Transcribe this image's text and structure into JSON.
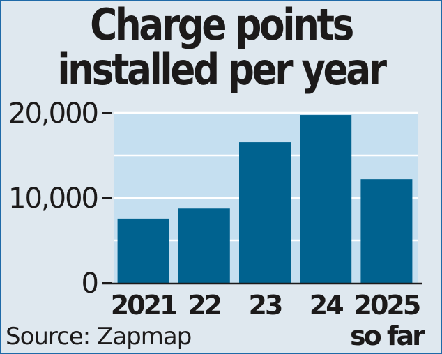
{
  "chart_data": {
    "type": "bar",
    "title_lines": [
      "Charge points",
      "installed per year"
    ],
    "categories": [
      "2021",
      "22",
      "23",
      "24",
      "2025"
    ],
    "category_sublabels": [
      "",
      "",
      "",
      "",
      "so far"
    ],
    "values": [
      7550,
      8750,
      16550,
      19750,
      12200
    ],
    "ylim": [
      0,
      20000
    ],
    "yticks": [
      0,
      10000,
      20000
    ],
    "ytick_labels": [
      "0",
      "10,000",
      "20,000"
    ],
    "gridlines": [
      5000,
      10000,
      15000,
      20000
    ],
    "xlabel": "",
    "ylabel": "",
    "grid": true,
    "source": "Source: Zapmap",
    "colors": {
      "bar": "#00628f",
      "plot_bg": "#c5dff0",
      "page_bg": "#dfe8ef",
      "border": "#1f6aa8",
      "grid": "#ffffff",
      "text": "#1c1a1a"
    }
  }
}
